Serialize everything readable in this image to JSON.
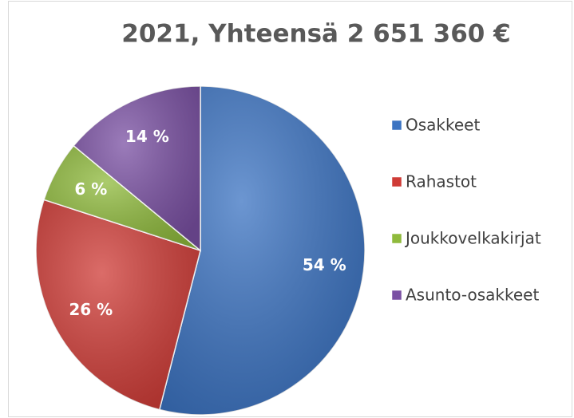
{
  "chart_data": {
    "type": "pie",
    "title": "2021, Yhteensä 2 651 360 €",
    "categories": [
      "Osakkeet",
      "Rahastot",
      "Joukkovelkakirjat",
      "Asunto-osakkeet"
    ],
    "values": [
      54,
      26,
      6,
      14
    ],
    "value_labels": [
      "54 %",
      "26 %",
      "6 %",
      "14 %"
    ],
    "colors": [
      "#3b73c2",
      "#cf3b36",
      "#8fba3c",
      "#7a50a3"
    ],
    "legend": "right"
  }
}
